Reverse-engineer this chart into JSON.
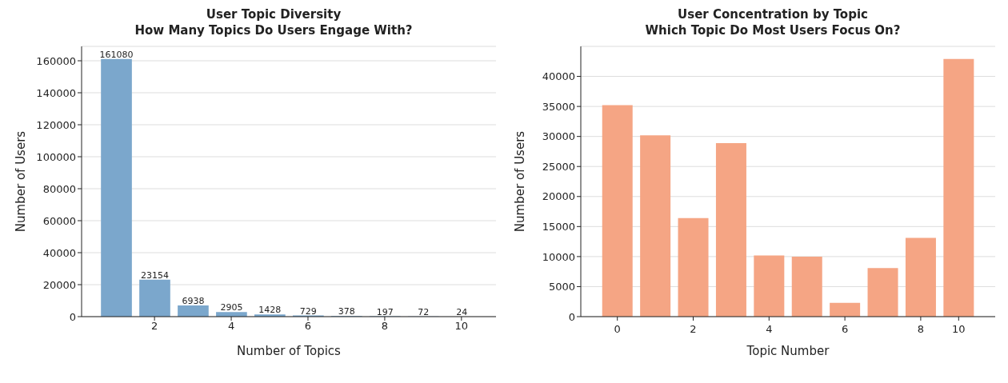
{
  "chart_data": [
    {
      "type": "bar",
      "title": "User Topic Diversity",
      "subtitle": "How Many Topics Do Users Engage With?",
      "xlabel": "Number of Topics",
      "ylabel": "Number of Users",
      "x": [
        1,
        2,
        3,
        4,
        5,
        6,
        7,
        8,
        9,
        10
      ],
      "values": [
        161080,
        23154,
        6938,
        2905,
        1428,
        729,
        378,
        197,
        72,
        24
      ],
      "color": "#7ba7cc",
      "xlim": [
        0.1,
        10.9
      ],
      "xticks": [
        2,
        4,
        6,
        8,
        10
      ],
      "ylim": [
        0,
        169000
      ],
      "yticks": [
        0,
        20000,
        40000,
        60000,
        80000,
        100000,
        120000,
        140000,
        160000
      ],
      "grid": "y",
      "data_labels": true
    },
    {
      "type": "bar",
      "title": "User Concentration by Topic",
      "subtitle": "Which Topic Do Most Users Focus On?",
      "xlabel": "Topic Number",
      "ylabel": "Number of Users",
      "categories": [
        "0",
        null,
        "2",
        null,
        "4",
        null,
        "6",
        null,
        "8",
        "10"
      ],
      "values": [
        35200,
        30200,
        16400,
        28900,
        10200,
        10000,
        2300,
        8100,
        13100,
        42900
      ],
      "color": "#f5a584",
      "ylim": [
        0,
        45000
      ],
      "yticks": [
        0,
        5000,
        10000,
        15000,
        20000,
        25000,
        30000,
        35000,
        40000
      ],
      "grid": "y"
    }
  ]
}
